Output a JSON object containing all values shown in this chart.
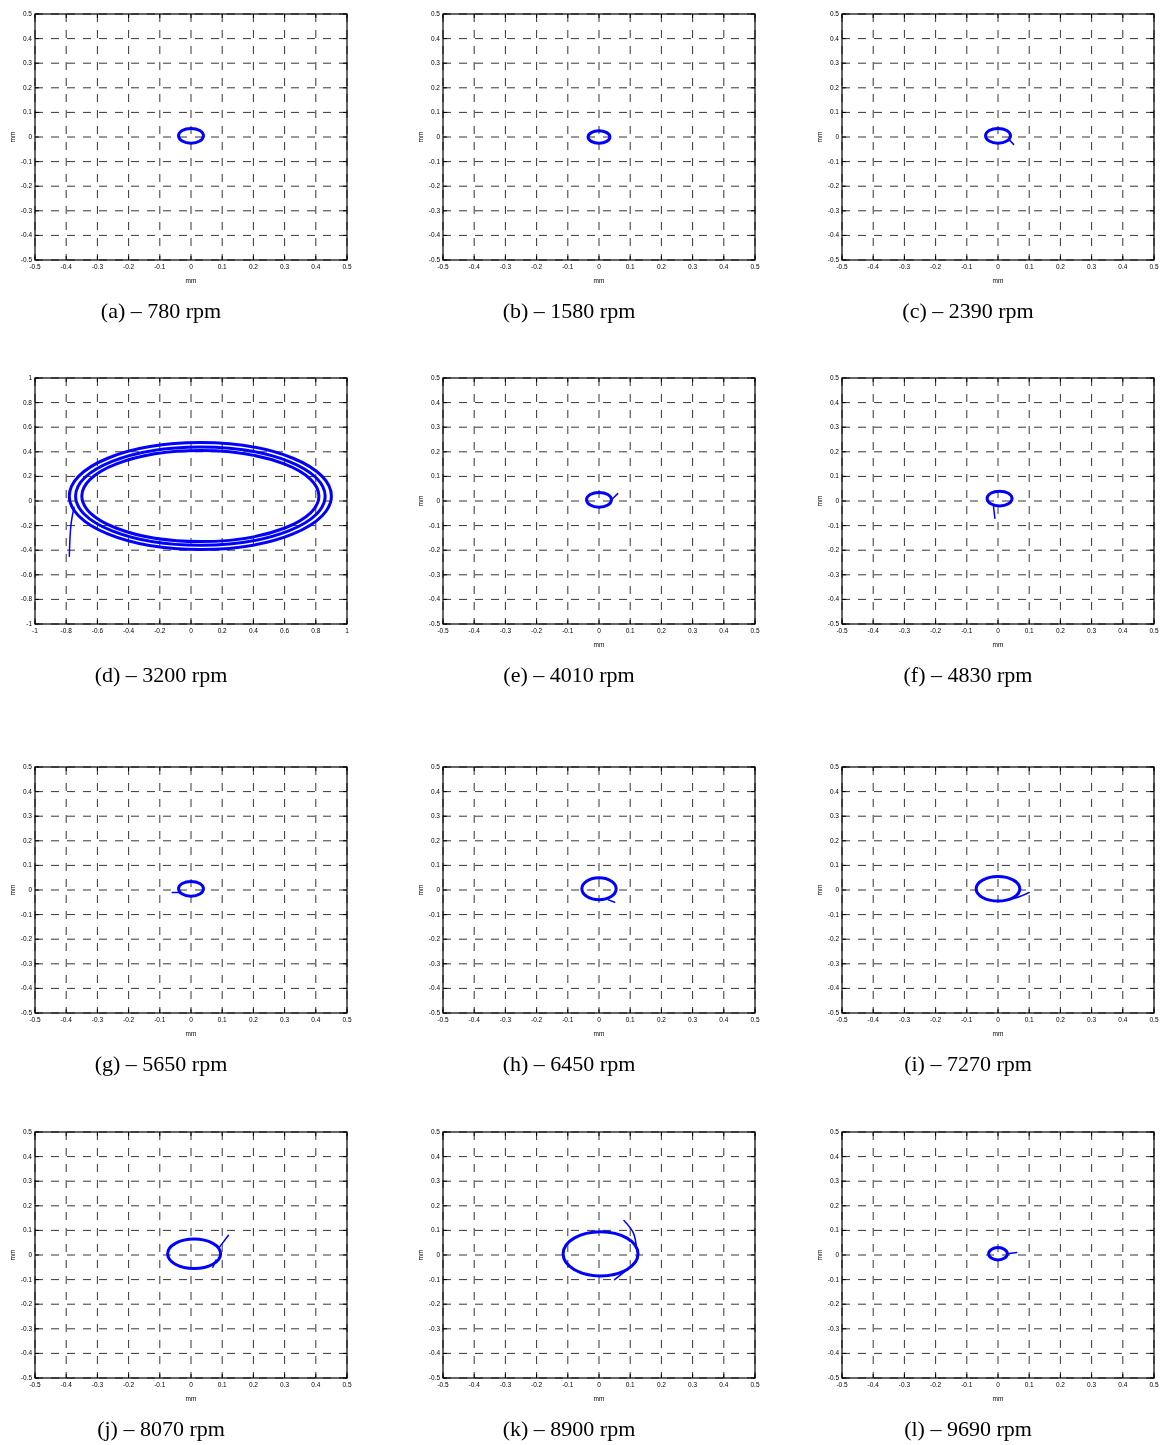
{
  "chart_data": [
    {
      "type": "line",
      "title": "(a) – 780 rpm",
      "xlabel": "mm",
      "ylabel": "mm",
      "xlim": [
        -0.5,
        0.5
      ],
      "ylim": [
        -0.5,
        0.5
      ],
      "xticks": [
        -0.5,
        -0.4,
        -0.3,
        -0.2,
        -0.1,
        0,
        0.1,
        0.2,
        0.3,
        0.4,
        0.5
      ],
      "yticks": [
        -0.5,
        -0.4,
        -0.3,
        -0.2,
        -0.1,
        0,
        0.1,
        0.2,
        0.3,
        0.4,
        0.5
      ],
      "grid": true
    },
    {
      "type": "line",
      "title": "(b) – 1580 rpm",
      "xlabel": "mm",
      "ylabel": "mm",
      "xlim": [
        -0.5,
        0.5
      ],
      "ylim": [
        -0.5,
        0.5
      ],
      "xticks": [
        -0.5,
        -0.4,
        -0.3,
        -0.2,
        -0.1,
        0,
        0.1,
        0.2,
        0.3,
        0.4,
        0.5
      ],
      "yticks": [
        -0.5,
        -0.4,
        -0.3,
        -0.2,
        -0.1,
        0,
        0.1,
        0.2,
        0.3,
        0.4,
        0.5
      ],
      "grid": true
    },
    {
      "type": "line",
      "title": "(c) – 2390 rpm",
      "xlabel": "mm",
      "ylabel": "mm",
      "xlim": [
        -0.5,
        0.5
      ],
      "ylim": [
        -0.5,
        0.5
      ],
      "xticks": [
        -0.5,
        -0.4,
        -0.3,
        -0.2,
        -0.1,
        0,
        0.1,
        0.2,
        0.3,
        0.4,
        0.5
      ],
      "yticks": [
        -0.5,
        -0.4,
        -0.3,
        -0.2,
        -0.1,
        0,
        0.1,
        0.2,
        0.3,
        0.4,
        0.5
      ],
      "grid": true
    },
    {
      "type": "line",
      "title": "(d) – 3200 rpm",
      "xlim": [
        -1,
        1
      ],
      "ylim": [
        -1,
        1
      ],
      "xticks": [
        -1,
        -0.8,
        -0.6,
        -0.4,
        -0.2,
        0,
        0.2,
        0.4,
        0.6,
        0.8,
        1
      ],
      "yticks": [
        -1,
        -0.8,
        -0.6,
        -0.4,
        -0.2,
        0,
        0.2,
        0.4,
        0.6,
        0.8,
        1
      ],
      "grid": true
    },
    {
      "type": "line",
      "title": "(e) – 4010 rpm",
      "xlabel": "mm",
      "ylabel": "mm",
      "xlim": [
        -0.5,
        0.5
      ],
      "ylim": [
        -0.5,
        0.5
      ],
      "xticks": [
        -0.5,
        -0.4,
        -0.3,
        -0.2,
        -0.1,
        0,
        0.1,
        0.2,
        0.3,
        0.4,
        0.5
      ],
      "yticks": [
        -0.5,
        -0.4,
        -0.3,
        -0.2,
        -0.1,
        0,
        0.1,
        0.2,
        0.3,
        0.4,
        0.5
      ],
      "grid": true
    },
    {
      "type": "line",
      "title": "(f) – 4830 rpm",
      "xlabel": "mm",
      "ylabel": "mm",
      "xlim": [
        -0.5,
        0.5
      ],
      "ylim": [
        -0.5,
        0.5
      ],
      "xticks": [
        -0.5,
        -0.4,
        -0.3,
        -0.2,
        -0.1,
        0,
        0.1,
        0.2,
        0.3,
        0.4,
        0.5
      ],
      "yticks": [
        -0.5,
        -0.4,
        -0.3,
        -0.2,
        -0.1,
        0,
        0.1,
        0.2,
        0.3,
        0.4,
        0.5
      ],
      "grid": true
    },
    {
      "type": "line",
      "title": "(g) – 5650 rpm",
      "xlabel": "mm",
      "ylabel": "mm",
      "xlim": [
        -0.5,
        0.5
      ],
      "ylim": [
        -0.5,
        0.5
      ],
      "xticks": [
        -0.5,
        -0.4,
        -0.3,
        -0.2,
        -0.1,
        0,
        0.1,
        0.2,
        0.3,
        0.4,
        0.5
      ],
      "yticks": [
        -0.5,
        -0.4,
        -0.3,
        -0.2,
        -0.1,
        0,
        0.1,
        0.2,
        0.3,
        0.4,
        0.5
      ],
      "grid": true
    },
    {
      "type": "line",
      "title": "(h) – 6450 rpm",
      "xlabel": "mm",
      "ylabel": "mm",
      "xlim": [
        -0.5,
        0.5
      ],
      "ylim": [
        -0.5,
        0.5
      ],
      "xticks": [
        -0.5,
        -0.4,
        -0.3,
        -0.2,
        -0.1,
        0,
        0.1,
        0.2,
        0.3,
        0.4,
        0.5
      ],
      "yticks": [
        -0.5,
        -0.4,
        -0.3,
        -0.2,
        -0.1,
        0,
        0.1,
        0.2,
        0.3,
        0.4,
        0.5
      ],
      "grid": true
    },
    {
      "type": "line",
      "title": "(i) – 7270 rpm",
      "xlabel": "mm",
      "ylabel": "mm",
      "xlim": [
        -0.5,
        0.5
      ],
      "ylim": [
        -0.5,
        0.5
      ],
      "xticks": [
        -0.5,
        -0.4,
        -0.3,
        -0.2,
        -0.1,
        0,
        0.1,
        0.2,
        0.3,
        0.4,
        0.5
      ],
      "yticks": [
        -0.5,
        -0.4,
        -0.3,
        -0.2,
        -0.1,
        0,
        0.1,
        0.2,
        0.3,
        0.4,
        0.5
      ],
      "grid": true
    },
    {
      "type": "line",
      "title": "(j) – 8070 rpm",
      "xlabel": "mm",
      "ylabel": "mm",
      "xlim": [
        -0.5,
        0.5
      ],
      "ylim": [
        -0.5,
        0.5
      ],
      "xticks": [
        -0.5,
        -0.4,
        -0.3,
        -0.2,
        -0.1,
        0,
        0.1,
        0.2,
        0.3,
        0.4,
        0.5
      ],
      "yticks": [
        -0.5,
        -0.4,
        -0.3,
        -0.2,
        -0.1,
        0,
        0.1,
        0.2,
        0.3,
        0.4,
        0.5
      ],
      "grid": true
    },
    {
      "type": "line",
      "title": "(k) – 8900 rpm",
      "xlabel": "mm",
      "ylabel": "mm",
      "xlim": [
        -0.5,
        0.5
      ],
      "ylim": [
        -0.5,
        0.5
      ],
      "xticks": [
        -0.5,
        -0.4,
        -0.3,
        -0.2,
        -0.1,
        0,
        0.1,
        0.2,
        0.3,
        0.4,
        0.5
      ],
      "yticks": [
        -0.5,
        -0.4,
        -0.3,
        -0.2,
        -0.1,
        0,
        0.1,
        0.2,
        0.3,
        0.4,
        0.5
      ],
      "grid": true
    },
    {
      "type": "line",
      "title": "(l) – 9690 rpm",
      "xlabel": "mm",
      "ylabel": "mm",
      "xlim": [
        -0.5,
        0.5
      ],
      "ylim": [
        -0.5,
        0.5
      ],
      "xticks": [
        -0.5,
        -0.4,
        -0.3,
        -0.2,
        -0.1,
        0,
        0.1,
        0.2,
        0.3,
        0.4,
        0.5
      ],
      "yticks": [
        -0.5,
        -0.4,
        -0.3,
        -0.2,
        -0.1,
        0,
        0.1,
        0.2,
        0.3,
        0.4,
        0.5
      ],
      "grid": true
    }
  ]
}
